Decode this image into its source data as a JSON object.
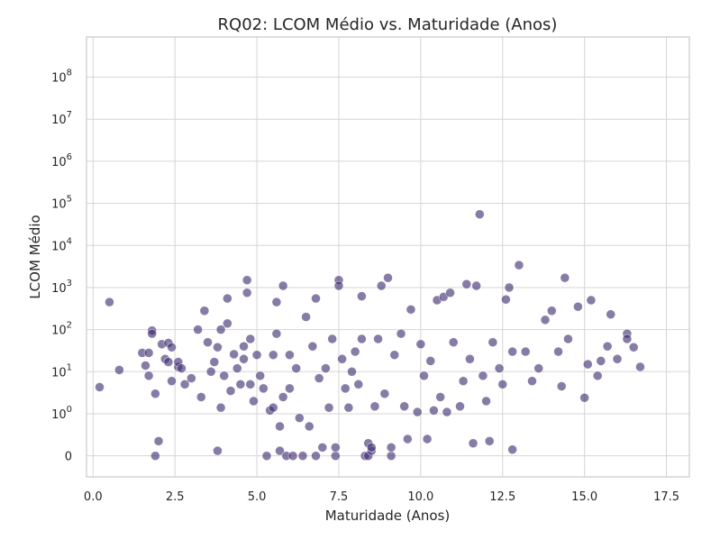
{
  "chart_data": {
    "type": "scatter",
    "title": "RQ02: LCOM Médio vs. Maturidade (Anos)",
    "xlabel": "Maturidade (Anos)",
    "ylabel": "LCOM Médio",
    "xlim": [
      -0.2,
      18.2
    ],
    "yscale": "symlog",
    "ylim": [
      -0.5,
      900000000
    ],
    "grid": true,
    "legend": "none",
    "point_color": "#3d2b70",
    "x_ticks": [
      {
        "value": 0.0,
        "label": "0.0"
      },
      {
        "value": 2.5,
        "label": "2.5"
      },
      {
        "value": 5.0,
        "label": "5.0"
      },
      {
        "value": 7.5,
        "label": "7.5"
      },
      {
        "value": 10.0,
        "label": "10.0"
      },
      {
        "value": 12.5,
        "label": "12.5"
      },
      {
        "value": 15.0,
        "label": "15.0"
      },
      {
        "value": 17.5,
        "label": "17.5"
      }
    ],
    "y_ticks": [
      {
        "value": 0,
        "base": "0",
        "exp": ""
      },
      {
        "value": 1,
        "base": "10",
        "exp": "0"
      },
      {
        "value": 10,
        "base": "10",
        "exp": "1"
      },
      {
        "value": 100,
        "base": "10",
        "exp": "2"
      },
      {
        "value": 1000,
        "base": "10",
        "exp": "3"
      },
      {
        "value": 10000,
        "base": "10",
        "exp": "4"
      },
      {
        "value": 100000,
        "base": "10",
        "exp": "5"
      },
      {
        "value": 1000000,
        "base": "10",
        "exp": "6"
      },
      {
        "value": 10000000,
        "base": "10",
        "exp": "7"
      },
      {
        "value": 100000000,
        "base": "10",
        "exp": "8"
      }
    ],
    "points": [
      [
        0.2,
        4.3
      ],
      [
        0.5,
        450
      ],
      [
        0.8,
        11
      ],
      [
        1.5,
        28
      ],
      [
        1.6,
        14
      ],
      [
        1.7,
        8
      ],
      [
        1.7,
        28
      ],
      [
        1.8,
        95
      ],
      [
        1.8,
        80
      ],
      [
        1.9,
        3
      ],
      [
        1.9,
        0
      ],
      [
        2.0,
        0.35
      ],
      [
        2.1,
        45
      ],
      [
        2.2,
        20
      ],
      [
        2.3,
        17
      ],
      [
        2.3,
        48
      ],
      [
        2.4,
        38
      ],
      [
        2.4,
        6
      ],
      [
        2.6,
        13
      ],
      [
        2.6,
        17
      ],
      [
        2.7,
        12
      ],
      [
        2.8,
        5
      ],
      [
        3.0,
        7
      ],
      [
        3.2,
        100
      ],
      [
        3.3,
        2.5
      ],
      [
        3.4,
        280
      ],
      [
        3.5,
        50
      ],
      [
        3.6,
        10
      ],
      [
        3.7,
        17
      ],
      [
        3.8,
        0.12
      ],
      [
        3.8,
        38
      ],
      [
        3.9,
        1.4
      ],
      [
        3.9,
        100
      ],
      [
        4.0,
        8
      ],
      [
        4.1,
        140
      ],
      [
        4.1,
        550
      ],
      [
        4.2,
        3.5
      ],
      [
        4.3,
        26
      ],
      [
        4.4,
        12
      ],
      [
        4.5,
        5
      ],
      [
        4.6,
        40
      ],
      [
        4.6,
        20
      ],
      [
        4.7,
        750
      ],
      [
        4.7,
        1500
      ],
      [
        4.8,
        5
      ],
      [
        4.8,
        60
      ],
      [
        4.9,
        2
      ],
      [
        5.0,
        25
      ],
      [
        5.1,
        8
      ],
      [
        5.2,
        4
      ],
      [
        5.3,
        0
      ],
      [
        5.4,
        1.2
      ],
      [
        5.5,
        1.4
      ],
      [
        5.5,
        25
      ],
      [
        5.6,
        450
      ],
      [
        5.6,
        80
      ],
      [
        5.7,
        0.12
      ],
      [
        5.7,
        0.7
      ],
      [
        5.8,
        2.5
      ],
      [
        5.8,
        1100
      ],
      [
        5.9,
        0
      ],
      [
        6.0,
        25
      ],
      [
        6.0,
        4
      ],
      [
        6.1,
        0
      ],
      [
        6.2,
        12
      ],
      [
        6.3,
        0.9
      ],
      [
        6.4,
        0
      ],
      [
        6.5,
        200
      ],
      [
        6.6,
        0.7
      ],
      [
        6.7,
        40
      ],
      [
        6.8,
        550
      ],
      [
        6.8,
        0
      ],
      [
        6.9,
        7
      ],
      [
        7.0,
        0.2
      ],
      [
        7.1,
        12
      ],
      [
        7.2,
        1.4
      ],
      [
        7.3,
        60
      ],
      [
        7.4,
        0
      ],
      [
        7.4,
        0.2
      ],
      [
        7.5,
        1500
      ],
      [
        7.5,
        1100
      ],
      [
        7.6,
        20
      ],
      [
        7.7,
        4
      ],
      [
        7.8,
        1.4
      ],
      [
        7.9,
        10
      ],
      [
        8.0,
        30
      ],
      [
        8.1,
        5
      ],
      [
        8.2,
        620
      ],
      [
        8.2,
        60
      ],
      [
        8.3,
        0
      ],
      [
        8.4,
        0
      ],
      [
        8.4,
        0.3
      ],
      [
        8.5,
        0.12
      ],
      [
        8.5,
        0.2
      ],
      [
        8.6,
        1.5
      ],
      [
        8.7,
        60
      ],
      [
        8.8,
        1100
      ],
      [
        8.9,
        3
      ],
      [
        9.0,
        1700
      ],
      [
        9.1,
        0
      ],
      [
        9.1,
        0.2
      ],
      [
        9.2,
        25
      ],
      [
        9.4,
        80
      ],
      [
        9.5,
        1.5
      ],
      [
        9.6,
        0.4
      ],
      [
        9.7,
        300
      ],
      [
        9.9,
        1.1
      ],
      [
        10.0,
        45
      ],
      [
        10.1,
        8
      ],
      [
        10.2,
        0.4
      ],
      [
        10.3,
        18
      ],
      [
        10.4,
        1.2
      ],
      [
        10.5,
        500
      ],
      [
        10.6,
        2.5
      ],
      [
        10.7,
        600
      ],
      [
        10.8,
        1.1
      ],
      [
        10.9,
        750
      ],
      [
        11.0,
        50
      ],
      [
        11.2,
        1.5
      ],
      [
        11.3,
        6
      ],
      [
        11.4,
        1200
      ],
      [
        11.5,
        20
      ],
      [
        11.6,
        0.3
      ],
      [
        11.7,
        1100
      ],
      [
        11.8,
        55000
      ],
      [
        11.9,
        8
      ],
      [
        12.0,
        2
      ],
      [
        12.1,
        0.35
      ],
      [
        12.2,
        50
      ],
      [
        12.4,
        12
      ],
      [
        12.5,
        5
      ],
      [
        12.6,
        520
      ],
      [
        12.7,
        1000
      ],
      [
        12.8,
        0.15
      ],
      [
        12.8,
        30
      ],
      [
        13.0,
        3400
      ],
      [
        13.2,
        30
      ],
      [
        13.4,
        6
      ],
      [
        13.6,
        12
      ],
      [
        13.8,
        170
      ],
      [
        14.0,
        280
      ],
      [
        14.2,
        30
      ],
      [
        14.3,
        4.5
      ],
      [
        14.4,
        1700
      ],
      [
        14.5,
        60
      ],
      [
        14.8,
        350
      ],
      [
        15.0,
        2.4
      ],
      [
        15.1,
        15
      ],
      [
        15.2,
        500
      ],
      [
        15.4,
        8
      ],
      [
        15.5,
        18
      ],
      [
        15.7,
        40
      ],
      [
        15.8,
        230
      ],
      [
        16.0,
        20
      ],
      [
        16.3,
        80
      ],
      [
        16.3,
        60
      ],
      [
        16.5,
        38
      ],
      [
        16.7,
        13
      ]
    ]
  }
}
